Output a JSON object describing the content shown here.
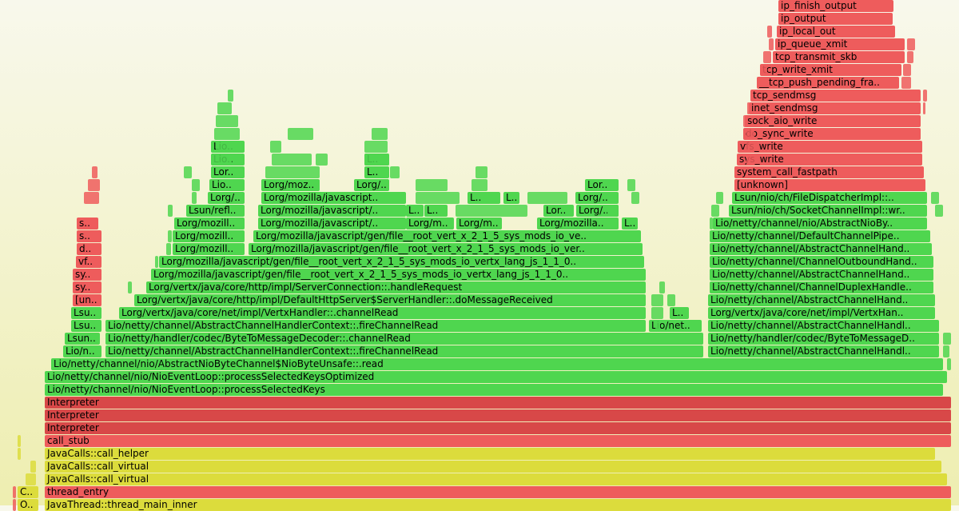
{
  "flame": {
    "frames": [
      {
        "label": "JavaThread::thread_main_inner",
        "type": "native"
      },
      {
        "label": "O..",
        "type": "native"
      },
      {
        "label": "thread_entry",
        "type": "kernel"
      },
      {
        "label": "C..",
        "type": "native"
      },
      {
        "label": "JavaCalls::call_virtual",
        "type": "native"
      },
      {
        "label": "JavaCalls::call_virtual",
        "type": "native"
      },
      {
        "label": "JavaCalls::call_helper",
        "type": "native"
      },
      {
        "label": "call_stub",
        "type": "kernel"
      },
      {
        "label": "Interpreter",
        "type": "interpreter"
      },
      {
        "label": "Interpreter",
        "type": "interpreter"
      },
      {
        "label": "Interpreter",
        "type": "interpreter"
      },
      {
        "label": "Lio/netty/channel/nio/NioEventLoop::processSelectedKeys",
        "type": "java"
      },
      {
        "label": "Lio/netty/channel/nio/NioEventLoop::processSelectedKeysOptimized",
        "type": "java"
      },
      {
        "label": "Lio/netty/channel/nio/AbstractNioByteChannel$NioByteUnsafe::.read",
        "type": "java"
      },
      {
        "label": "Lio/n..",
        "type": "java"
      },
      {
        "label": "Lio/netty/channel/AbstractChannelHandlerContext::.fireChannelRead",
        "type": "java"
      },
      {
        "label": "Lio/netty/channel/AbstractChannelHandl..",
        "type": "java"
      },
      {
        "label": "Lsun..",
        "type": "java"
      },
      {
        "label": "Lio/netty/handler/codec/ByteToMessageDecoder::.channelRead",
        "type": "java"
      },
      {
        "label": "Lio/netty/handler/codec/ByteToMessageD..",
        "type": "java"
      },
      {
        "label": "Lsu..",
        "type": "java"
      },
      {
        "label": "Lio/netty/channel/AbstractChannelHandlerContext::.fireChannelRead",
        "type": "java"
      },
      {
        "label": "Lio/net..",
        "type": "java"
      },
      {
        "label": "Lio/netty/channel/AbstractChannelHandl..",
        "type": "java"
      },
      {
        "label": "Lsu..",
        "type": "java"
      },
      {
        "label": "Lorg/vertx/java/core/net/impl/VertxHandler::.channelRead",
        "type": "java"
      },
      {
        "label": "L..",
        "type": "java"
      },
      {
        "label": "Lorg/vertx/java/core/net/impl/VertxHan..",
        "type": "java"
      },
      {
        "label": "[un..",
        "type": "kernel"
      },
      {
        "label": "Lorg/vertx/java/core/http/impl/DefaultHttpServer$ServerHandler::.doMessageReceived",
        "type": "java"
      },
      {
        "label": "Lio/netty/channel/AbstractChannelHand..",
        "type": "java"
      },
      {
        "label": "sy..",
        "type": "kernel"
      },
      {
        "label": "Lorg/vertx/java/core/http/impl/ServerConnection::.handleRequest",
        "type": "java"
      },
      {
        "label": "Lio/netty/channel/ChannelDuplexHandle..",
        "type": "java"
      },
      {
        "label": "sy..",
        "type": "kernel"
      },
      {
        "label": "Lorg/mozilla/javascript/gen/file__root_vert_x_2_1_5_sys_mods_io_vertx_lang_js_1_1_0..",
        "type": "java"
      },
      {
        "label": "Lio/netty/channel/AbstractChannelHand..",
        "type": "java"
      },
      {
        "label": "vf..",
        "type": "kernel"
      },
      {
        "label": "Lorg/mozilla/javascript/gen/file__root_vert_x_2_1_5_sys_mods_io_vertx_lang_js_1_1_0..",
        "type": "java"
      },
      {
        "label": "Lio/netty/channel/ChannelOutboundHand..",
        "type": "java"
      },
      {
        "label": "d..",
        "type": "kernel"
      },
      {
        "label": "Lorg/mozill..",
        "type": "java"
      },
      {
        "label": "Lorg/mozilla/javascript/gen/file__root_vert_x_2_1_5_sys_mods_io_ver..",
        "type": "java"
      },
      {
        "label": "Lio/netty/channel/AbstractChannelHand..",
        "type": "java"
      },
      {
        "label": "s..",
        "type": "kernel"
      },
      {
        "label": "Lorg/mozill..",
        "type": "java"
      },
      {
        "label": "Lorg/mozilla/javascript/gen/file__root_vert_x_2_1_5_sys_mods_io_ve..",
        "type": "java"
      },
      {
        "label": "Lio/netty/channel/DefaultChannelPipe..",
        "type": "java"
      },
      {
        "label": "s..",
        "type": "kernel"
      },
      {
        "label": "Lorg/mozill..",
        "type": "java"
      },
      {
        "label": "Lorg/mozilla/javascript/..",
        "type": "java"
      },
      {
        "label": "Lorg/m..",
        "type": "java"
      },
      {
        "label": "Lorg/m..",
        "type": "java"
      },
      {
        "label": "Lorg/mozilla..",
        "type": "java"
      },
      {
        "label": "L..",
        "type": "java"
      },
      {
        "label": "Lio/netty/channel/nio/AbstractNioBy..",
        "type": "java"
      },
      {
        "label": "Lsun/refl..",
        "type": "java"
      },
      {
        "label": "Lorg/mozilla/javascript/..",
        "type": "java"
      },
      {
        "label": "L..",
        "type": "java"
      },
      {
        "label": "L..",
        "type": "java"
      },
      {
        "label": "Lor..",
        "type": "java"
      },
      {
        "label": "Lorg/..",
        "type": "java"
      },
      {
        "label": "Lsun/nio/ch/SocketChannelImpl::wr..",
        "type": "java"
      },
      {
        "label": "Lorg/..",
        "type": "java"
      },
      {
        "label": "Lorg/mozilla/javascript..",
        "type": "java"
      },
      {
        "label": "L..",
        "type": "java"
      },
      {
        "label": "L..",
        "type": "java"
      },
      {
        "label": "Lorg/..",
        "type": "java"
      },
      {
        "label": "Lsun/nio/ch/FileDispatcherImpl::..",
        "type": "java"
      },
      {
        "label": "Lio..",
        "type": "java"
      },
      {
        "label": "Lorg/moz..",
        "type": "java"
      },
      {
        "label": "Lorg/..",
        "type": "java"
      },
      {
        "label": "Lor..",
        "type": "java"
      },
      {
        "label": "[unknown]",
        "type": "kernel"
      },
      {
        "label": "Lor..",
        "type": "java"
      },
      {
        "label": "L..",
        "type": "java"
      },
      {
        "label": "system_call_fastpath",
        "type": "kernel"
      },
      {
        "label": "Lio..",
        "type": "java"
      },
      {
        "label": "L..",
        "type": "java"
      },
      {
        "label": "sys_write",
        "type": "kernel"
      },
      {
        "label": "Lio..",
        "type": "java"
      },
      {
        "label": "vfs_write",
        "type": "kernel"
      },
      {
        "label": "do_sync_write",
        "type": "kernel"
      },
      {
        "label": "sock_aio_write",
        "type": "kernel"
      },
      {
        "label": "inet_sendmsg",
        "type": "kernel"
      },
      {
        "label": "tcp_sendmsg",
        "type": "kernel"
      },
      {
        "label": "__tcp_push_pending_fra..",
        "type": "kernel"
      },
      {
        "label": "tcp_write_xmit",
        "type": "kernel"
      },
      {
        "label": "tcp_transmit_skb",
        "type": "kernel"
      },
      {
        "label": "ip_queue_xmit",
        "type": "kernel"
      },
      {
        "label": "ip_local_out",
        "type": "kernel"
      },
      {
        "label": "ip_output",
        "type": "kernel"
      },
      {
        "label": "ip_finish_output",
        "type": "kernel"
      }
    ],
    "colors": {
      "java": "#4fd64f",
      "native": "#dcdc3c",
      "kernel": "#ee5c5c",
      "interpreter": "#d84848"
    }
  }
}
